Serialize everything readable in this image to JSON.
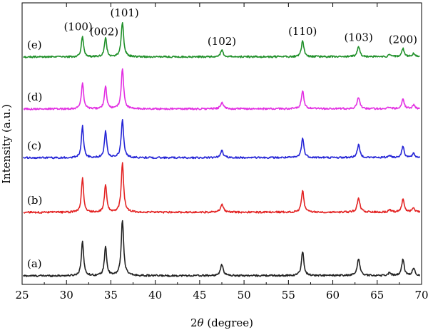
{
  "chart_data": {
    "type": "line",
    "xlabel": "2θ (degree)",
    "xlabel_theta": "θ",
    "xlabel_prefix": "2",
    "xlabel_suffix": " (degree)",
    "ylabel": "Intensity (a.u.)",
    "xlim": [
      25,
      70
    ],
    "xticks": [
      25,
      30,
      35,
      40,
      45,
      50,
      55,
      60,
      65,
      70
    ],
    "grid": false,
    "yticks_shown": false,
    "peaks_2theta": [
      31.8,
      34.4,
      36.3,
      47.5,
      56.6,
      62.9,
      66.4,
      67.9,
      69.1
    ],
    "peak_labels": [
      {
        "text": "(100)",
        "x": 31.8
      },
      {
        "text": "(002)",
        "x": 34.4
      },
      {
        "text": "(101)",
        "x": 36.3
      },
      {
        "text": "(102)",
        "x": 47.5
      },
      {
        "text": "(110)",
        "x": 56.6
      },
      {
        "text": "(103)",
        "x": 62.9
      },
      {
        "text": "(200)",
        "x": 67.9
      }
    ],
    "series": [
      {
        "name": "(a)",
        "color": "#222222",
        "baseline": 0.0,
        "peak_heights": [
          0.55,
          0.47,
          0.88,
          0.17,
          0.38,
          0.27,
          0.05,
          0.26,
          0.12
        ]
      },
      {
        "name": "(b)",
        "color": "#e32323",
        "baseline": 1.0,
        "peak_heights": [
          0.54,
          0.44,
          0.77,
          0.13,
          0.35,
          0.23,
          0.04,
          0.21,
          0.07
        ]
      },
      {
        "name": "(c)",
        "color": "#2424d6",
        "baseline": 1.86,
        "peak_heights": [
          0.5,
          0.43,
          0.59,
          0.11,
          0.31,
          0.2,
          0.04,
          0.18,
          0.06
        ]
      },
      {
        "name": "(d)",
        "color": "#e22ee2",
        "baseline": 2.63,
        "peak_heights": [
          0.41,
          0.36,
          0.63,
          0.1,
          0.28,
          0.18,
          0.03,
          0.16,
          0.06
        ]
      },
      {
        "name": "(e)",
        "color": "#20902a",
        "baseline": 3.45,
        "peak_heights": [
          0.33,
          0.3,
          0.55,
          0.1,
          0.26,
          0.16,
          0.03,
          0.13,
          0.05
        ]
      }
    ]
  }
}
